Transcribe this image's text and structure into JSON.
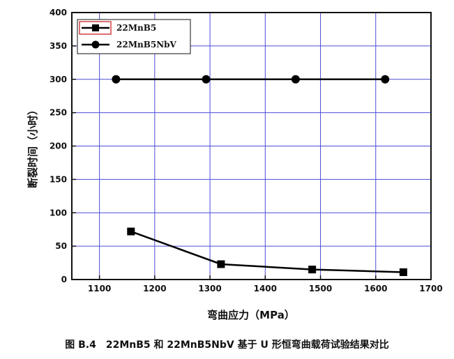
{
  "chart_data": {
    "type": "line",
    "xlabel": "弯曲应力（MPa）",
    "ylabel": "断裂时间（小时）",
    "xlim": [
      1050,
      1700
    ],
    "ylim": [
      0,
      400
    ],
    "xticks": [
      1100,
      1200,
      1300,
      1400,
      1500,
      1600,
      1700
    ],
    "yticks": [
      0,
      50,
      100,
      150,
      200,
      250,
      300,
      350,
      400
    ],
    "grid": true,
    "legend_position": "top-left",
    "series": [
      {
        "name": "22MnB5",
        "marker": "square",
        "color": "#000000",
        "points": [
          [
            1157,
            72
          ],
          [
            1320,
            23
          ],
          [
            1485,
            15
          ],
          [
            1650,
            11
          ]
        ]
      },
      {
        "name": "22MnB5NbV",
        "marker": "circle",
        "color": "#000000",
        "points": [
          [
            1130,
            300
          ],
          [
            1293,
            300
          ],
          [
            1455,
            300
          ],
          [
            1617,
            300
          ]
        ]
      }
    ]
  },
  "caption": "图 B.4　22MnB5 和 22MnB5NbV 基于 U 形恒弯曲载荷试验结果对比"
}
